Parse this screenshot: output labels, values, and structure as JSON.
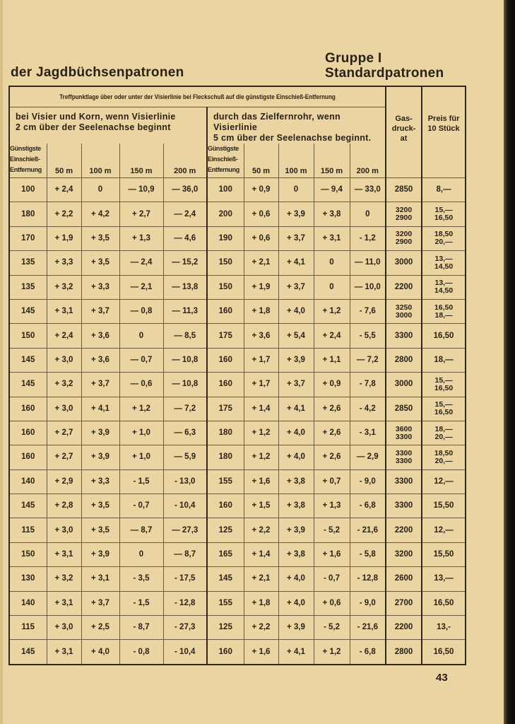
{
  "heading": {
    "left": "der Jagdbüchsenpatronen",
    "group": "Gruppe I",
    "subtitle": "Standardpatronen"
  },
  "table": {
    "caption": "Treffpunktlage über oder unter der Visierlinie bei Fleckschuß auf die günstigste Einschieß-Entfernung",
    "left_desc": "bei Visier und Korn, wenn Visierlinie\n2 cm über der Seelenachse beginnt",
    "right_desc": "durch das Zielfernrohr, wenn Visierlinie\n5 cm über der Seelenachse beginnt.",
    "gas_header": "Gas-\ndruck-\nat",
    "price_header": "Preis für\n10 Stück",
    "col_labels": [
      "Günstigste\nEinschieß-\nEntfernung",
      "50 m",
      "100 m",
      "150 m",
      "200 m",
      "Günstigste\nEinschieß-\nEntfernung",
      "50 m",
      "100 m",
      "150 m",
      "200 m"
    ],
    "rows": [
      [
        "100",
        "+ 2,4",
        "0",
        "— 10,9",
        "— 36,0",
        "100",
        "+ 0,9",
        "0",
        "— 9,4",
        "— 33,0",
        "2850",
        "8,—"
      ],
      [
        "180",
        "+ 2,2",
        "+ 4,2",
        "+ 2,7",
        "— 2,4",
        "200",
        "+ 0,6",
        "+ 3,9",
        "+ 3,8",
        "0",
        "3200\n2900",
        "15,—\n16,50"
      ],
      [
        "170",
        "+ 1,9",
        "+ 3,5",
        "+ 1,3",
        "— 4,6",
        "190",
        "+ 0,6",
        "+ 3,7",
        "+ 3,1",
        "- 1,2",
        "3200\n2900",
        "18,50\n20,—"
      ],
      [
        "135",
        "+ 3,3",
        "+ 3,5",
        "— 2,4",
        "— 15,2",
        "150",
        "+ 2,1",
        "+ 4,1",
        "0",
        "— 11,0",
        "3000",
        "13,—\n14,50"
      ],
      [
        "135",
        "+ 3,2",
        "+ 3,3",
        "— 2,1",
        "— 13,8",
        "150",
        "+ 1,9",
        "+ 3,7",
        "0",
        "— 10,0",
        "2200",
        "13,—\n14,50"
      ],
      [
        "145",
        "+ 3,1",
        "+ 3,7",
        "— 0,8",
        "— 11,3",
        "160",
        "+ 1,8",
        "+ 4,0",
        "+ 1,2",
        "- 7,6",
        "3250\n3000",
        "16,50\n18,—"
      ],
      [
        "150",
        "+ 2,4",
        "+ 3,6",
        "0",
        "— 8,5",
        "175",
        "+ 3,6",
        "+ 5,4",
        "+ 2,4",
        "- 5,5",
        "3300",
        "16,50"
      ],
      [
        "145",
        "+ 3,0",
        "+ 3,6",
        "— 0,7",
        "— 10,8",
        "160",
        "+ 1,7",
        "+ 3,9",
        "+ 1,1",
        "— 7,2",
        "2800",
        "18,—"
      ],
      [
        "145",
        "+ 3,2",
        "+ 3,7",
        "— 0,6",
        "— 10,8",
        "160",
        "+ 1,7",
        "+ 3,7",
        "+ 0,9",
        "- 7,8",
        "3000",
        "15,—\n16,50"
      ],
      [
        "160",
        "+ 3,0",
        "+ 4,1",
        "+ 1,2",
        "— 7,2",
        "175",
        "+ 1,4",
        "+ 4,1",
        "+ 2,6",
        "- 4,2",
        "2850",
        "15,—\n16,50"
      ],
      [
        "160",
        "+ 2,7",
        "+ 3,9",
        "+ 1,0",
        "— 6,3",
        "180",
        "+ 1,2",
        "+ 4,0",
        "+ 2,6",
        "- 3,1",
        "3600\n3300",
        "18,—\n20,—"
      ],
      [
        "160",
        "+ 2,7",
        "+ 3,9",
        "+ 1,0",
        "— 5,9",
        "180",
        "+ 1,2",
        "+ 4,0",
        "+ 2,6",
        "— 2,9",
        "3300\n3300",
        "18,50\n20,—"
      ],
      [
        "140",
        "+ 2,9",
        "+ 3,3",
        "- 1,5",
        "- 13,0",
        "155",
        "+ 1,6",
        "+ 3,8",
        "+ 0,7",
        "- 9,0",
        "3300",
        "12,—"
      ],
      [
        "145",
        "+ 2,8",
        "+ 3,5",
        "- 0,7",
        "- 10,4",
        "160",
        "+ 1,5",
        "+ 3,8",
        "+ 1,3",
        "- 6,8",
        "3300",
        "15,50"
      ],
      [
        "115",
        "+ 3,0",
        "+ 3,5",
        "— 8,7",
        "— 27,3",
        "125",
        "+ 2,2",
        "+ 3,9",
        "- 5,2",
        "- 21,6",
        "2200",
        "12,—"
      ],
      [
        "150",
        "+ 3,1",
        "+ 3,9",
        "0",
        "— 8,7",
        "165",
        "+ 1,4",
        "+ 3,8",
        "+ 1,6",
        "- 5,8",
        "3200",
        "15,50"
      ],
      [
        "130",
        "+ 3,2",
        "+ 3,1",
        "- 3,5",
        "- 17,5",
        "145",
        "+ 2,1",
        "+ 4,0",
        "- 0,7",
        "- 12,8",
        "2600",
        "13,—"
      ],
      [
        "140",
        "+ 3,1",
        "+ 3,7",
        "- 1,5",
        "- 12,8",
        "155",
        "+ 1,8",
        "+ 4,0",
        "+ 0,6",
        "- 9,0",
        "2700",
        "16,50"
      ],
      [
        "115",
        "+ 3,0",
        "+ 2,5",
        "- 8,7",
        "- 27,3",
        "125",
        "+ 2,2",
        "+ 3,9",
        "- 5,2",
        "- 21,6",
        "2200",
        "13,-"
      ],
      [
        "145",
        "+ 3,1",
        "+ 4,0",
        "- 0,8",
        "- 10,4",
        "160",
        "+ 1,6",
        "+ 4,1",
        "+ 1,2",
        "- 6,8",
        "2800",
        "16,50"
      ]
    ]
  },
  "page_number": "43"
}
